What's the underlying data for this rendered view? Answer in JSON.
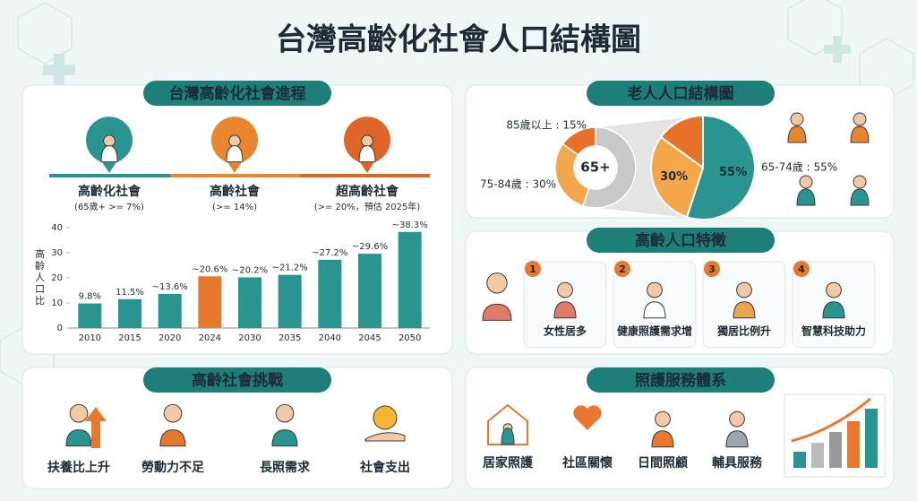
{
  "title": "台灣高齡化社會人口結構圖",
  "progress": {
    "title": "台灣高齡化社會進程",
    "stages": [
      {
        "name": "高齡化社會",
        "note": "(65歲+ >= 7%)"
      },
      {
        "name": "高齡社會",
        "note": "(>= 14%)"
      },
      {
        "name": "超高齡社會",
        "note": "(>= 20%，預估 2025年)"
      }
    ]
  },
  "features": {
    "title": "高齡人口特徵",
    "items": [
      {
        "number": 1,
        "label": "女性居多"
      },
      {
        "number": 2,
        "label": "健康照護需求增"
      },
      {
        "number": 3,
        "label": "獨居比例升"
      },
      {
        "number": 4,
        "label": "智慧科技助力"
      }
    ]
  },
  "challenges": {
    "title": "高齡社會挑戰",
    "items": [
      "扶養比上升",
      "勞動力不足",
      "長照需求",
      "社會支出"
    ]
  },
  "services": {
    "title": "照護服務體系",
    "items": [
      "居家照護",
      "社區關懷",
      "日間照顧",
      "輔具服務"
    ]
  },
  "chart_data": [
    {
      "type": "bar",
      "y_label": "高齡人口比",
      "categories": [
        "2010",
        "2015",
        "2020",
        "2024",
        "2030",
        "2035",
        "2040",
        "2045",
        "2050"
      ],
      "values": [
        9.8,
        11.5,
        13.6,
        20.6,
        20.2,
        21.2,
        27.2,
        29.6,
        38.3
      ],
      "value_labels": [
        "9.8%",
        "11.5%",
        "~13.6%",
        "~20.6%",
        "~20.2%",
        "~21.2%",
        "~27.2%",
        "~29.6%",
        "~38.3%"
      ],
      "colors": [
        "#2a9490",
        "#2a9490",
        "#2a9490",
        "#e8782e",
        "#2a9490",
        "#2a9490",
        "#2a9490",
        "#2a9490",
        "#2a9490"
      ],
      "ylim": [
        0,
        40
      ],
      "yticks": [
        0,
        10,
        20,
        30,
        40
      ],
      "grid": false
    },
    {
      "type": "pie",
      "title": "老人人口結構圖",
      "center_label": "65+",
      "categories": [
        "65-74歲 : 55%",
        "75-84歲 : 30%",
        "85歲以上 : 15%"
      ],
      "values": [
        55,
        30,
        15
      ],
      "value_labels": [
        "55%",
        "30%",
        null
      ],
      "colors": [
        "#2a9490",
        "#f4a64a",
        "#e8712a"
      ],
      "inset_colors": [
        "#c8c8c8",
        "#f4a64a",
        "#e8712a"
      ]
    }
  ]
}
